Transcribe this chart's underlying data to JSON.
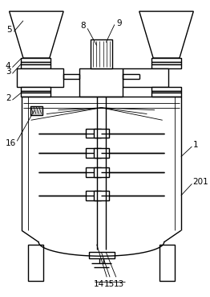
{
  "bg_color": "#ffffff",
  "line_color": "#000000",
  "lw": 1.0,
  "tlw": 0.6,
  "figsize": [
    2.62,
    3.69
  ],
  "dpi": 100,
  "fs": 7.5
}
